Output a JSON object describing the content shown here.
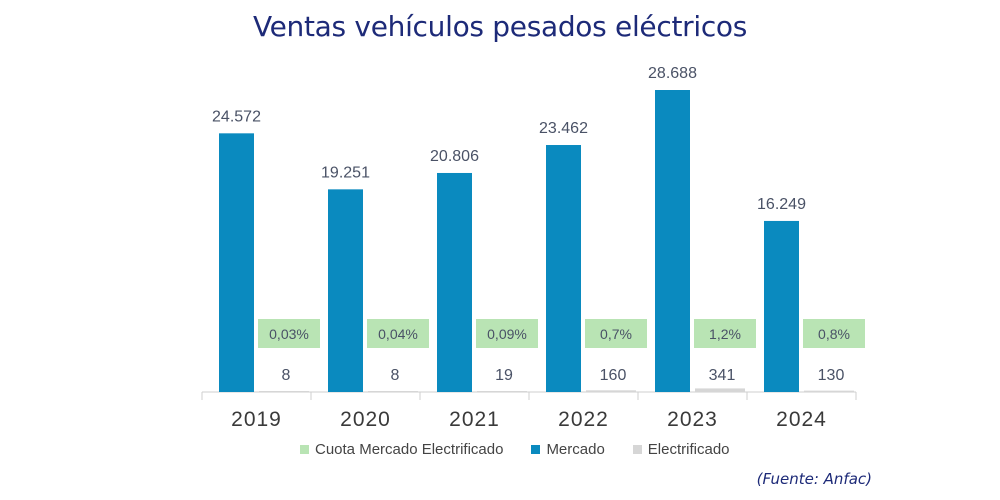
{
  "title": "Ventas vehículos pesados eléctricos",
  "source": "(Fuente: Anfac)",
  "colors": {
    "mercado": "#0a8abf",
    "electrificado": "#d6d6d6",
    "cuota": "#b9e4b4",
    "title": "#1d2a78",
    "label": "#4a5266"
  },
  "legend": [
    {
      "name": "Cuota Mercado Electrificado",
      "color": "#b9e4b4"
    },
    {
      "name": "Mercado",
      "color": "#0a8abf"
    },
    {
      "name": "Electrificado",
      "color": "#d6d6d6"
    }
  ],
  "chart_data": {
    "type": "bar",
    "title": "Ventas vehículos pesados eléctricos",
    "categories": [
      "2019",
      "2020",
      "2021",
      "2022",
      "2023",
      "2024"
    ],
    "series": [
      {
        "name": "Mercado",
        "values": [
          24572,
          19251,
          20806,
          23462,
          28688,
          16249
        ],
        "labels": [
          "24.572",
          "19.251",
          "20.806",
          "23.462",
          "28.688",
          "16.249"
        ]
      },
      {
        "name": "Electrificado",
        "values": [
          8,
          8,
          19,
          160,
          341,
          130
        ],
        "labels": [
          "8",
          "8",
          "19",
          "160",
          "341",
          "130"
        ]
      },
      {
        "name": "Cuota Mercado Electrificado",
        "values": [
          0.03,
          0.04,
          0.09,
          0.7,
          1.2,
          0.8
        ],
        "labels": [
          "0,03%",
          "0,04%",
          "0,09%",
          "0,7%",
          "1,2%",
          "0,8%"
        ]
      }
    ],
    "xlabel": "",
    "ylabel": "",
    "ylim": [
      0,
      30000
    ],
    "grid": false,
    "legend_position": "bottom",
    "source": "(Fuente: Anfac)"
  }
}
